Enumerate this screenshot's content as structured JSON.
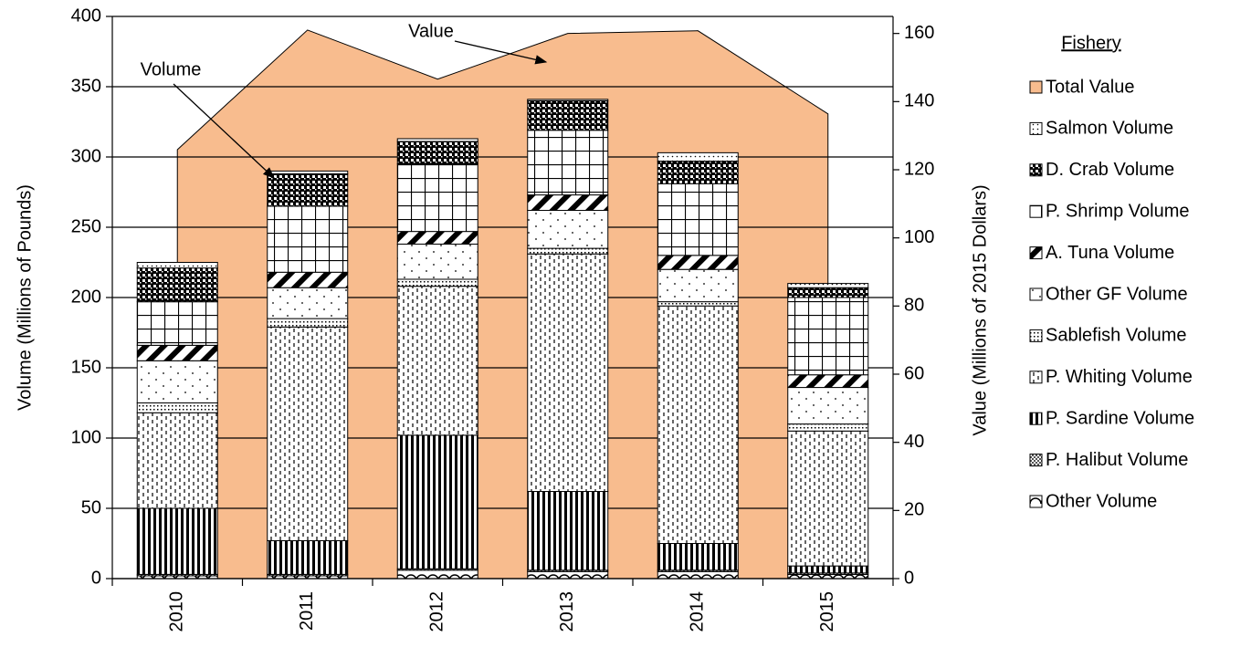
{
  "chart_data": {
    "type": "bar",
    "stacked": true,
    "categories": [
      "2010",
      "2011",
      "2012",
      "2013",
      "2014",
      "2015"
    ],
    "y_label": "Volume (Millions of Pounds)",
    "y2_label": "Value (Millions of 2015 Dollars)",
    "legend_title": "Fishery",
    "legend": "right",
    "grid": true,
    "ylim": [
      0,
      400
    ],
    "yticks": [
      0,
      50,
      100,
      150,
      200,
      250,
      300,
      350,
      400
    ],
    "y2lim": [
      0,
      165
    ],
    "y2ticks": [
      0,
      20,
      40,
      60,
      80,
      100,
      120,
      140,
      160
    ],
    "annotations": [
      {
        "text": "Value"
      },
      {
        "text": "Volume"
      }
    ],
    "series": [
      {
        "name": "Other Volume",
        "values": [
          2,
          2,
          6,
          5,
          5,
          3
        ]
      },
      {
        "name": "P. Halibut Volume",
        "values": [
          1,
          1,
          1,
          1,
          1,
          1
        ]
      },
      {
        "name": "P. Sardine Volume",
        "values": [
          47,
          24,
          95,
          56,
          19,
          5
        ]
      },
      {
        "name": "P. Whiting Volume",
        "values": [
          68,
          152,
          106,
          169,
          169,
          96
        ]
      },
      {
        "name": "Sablefish Volume",
        "values": [
          7,
          6,
          5,
          4,
          3,
          5
        ]
      },
      {
        "name": "Other GF Volume",
        "values": [
          30,
          22,
          25,
          27,
          23,
          26
        ]
      },
      {
        "name": "A. Tuna Volume",
        "values": [
          11,
          11,
          9,
          11,
          10,
          9
        ]
      },
      {
        "name": "P. Shrimp Volume",
        "values": [
          31,
          47,
          48,
          46,
          51,
          55
        ]
      },
      {
        "name": "D. Crab Volume",
        "values": [
          24,
          23,
          16,
          21,
          16,
          7
        ]
      },
      {
        "name": "Salmon Volume",
        "values": [
          4,
          2,
          2,
          1,
          6,
          3
        ]
      },
      {
        "name": "Total Value",
        "type": "area",
        "axis": "y2",
        "color": "#f8bc8e",
        "values": [
          125.9,
          161,
          146.6,
          160,
          160.8,
          136.4
        ]
      }
    ]
  }
}
